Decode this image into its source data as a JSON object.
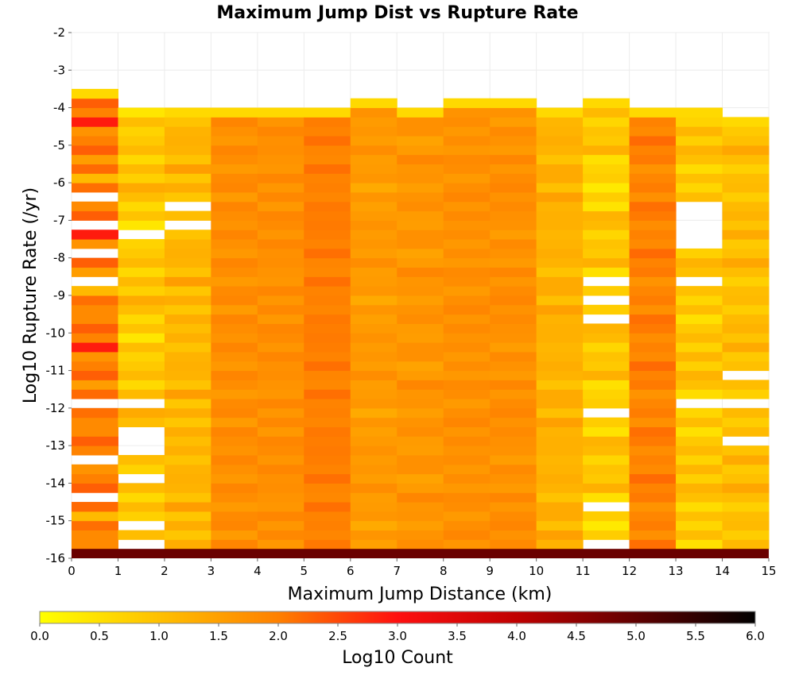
{
  "chart_data": {
    "type": "heatmap",
    "title": "Maximum Jump Dist vs Rupture Rate",
    "xlabel": "Maximum Jump Distance (km)",
    "ylabel": "Log10 Rupture Rate (/yr)",
    "xlim": [
      0,
      15
    ],
    "ylim": [
      -16,
      -2
    ],
    "x_ticks": [
      "0",
      "1",
      "2",
      "3",
      "4",
      "5",
      "6",
      "7",
      "8",
      "9",
      "10",
      "11",
      "12",
      "13",
      "14",
      "15"
    ],
    "y_ticks": [
      "-2",
      "-3",
      "-4",
      "-5",
      "-6",
      "-7",
      "-8",
      "-9",
      "-10",
      "-11",
      "-12",
      "-13",
      "-14",
      "-15",
      "-16"
    ],
    "bin_y0": -16,
    "bin_dy": 0.25,
    "grid": true,
    "colorbar": {
      "label": "Log10 Count",
      "range": [
        0,
        6
      ],
      "ticks": [
        "0.0",
        "0.5",
        "1.0",
        "1.5",
        "2.0",
        "2.5",
        "3.0",
        "3.5",
        "4.0",
        "4.5",
        "5.0",
        "5.5",
        "6.0"
      ],
      "stops": [
        {
          "v": 0.0,
          "c": "#ffff00"
        },
        {
          "v": 1.0,
          "c": "#ffc000"
        },
        {
          "v": 2.0,
          "c": "#ff8000"
        },
        {
          "v": 3.0,
          "c": "#ff1010"
        },
        {
          "v": 4.0,
          "c": "#c00000"
        },
        {
          "v": 5.0,
          "c": "#600000"
        },
        {
          "v": 6.0,
          "c": "#000000"
        }
      ]
    },
    "columns": [
      {
        "x": [
          0,
          1
        ],
        "top": -3.5,
        "base": 2.3,
        "holes": [
          -6.5,
          -7.25,
          -8.0,
          -8.75,
          -12.0,
          -13.5,
          -14.5
        ],
        "pattern": [
          0.0,
          -0.6,
          -0.3,
          0.2,
          -0.8,
          0.1,
          -0.5,
          0.3,
          -0.2,
          -0.7,
          0.4,
          -0.4
        ]
      },
      {
        "x": [
          1,
          2
        ],
        "top": -4.0,
        "base": 0.9,
        "holes": [
          -7.5,
          -12.0,
          -12.75,
          -13.0,
          -13.25,
          -14.0,
          -15.25,
          -15.75
        ],
        "pattern": [
          0.2,
          -0.3,
          0.0,
          0.3,
          -0.2,
          0.1,
          -0.4,
          0.2,
          0.0,
          -0.1,
          0.3,
          -0.3
        ]
      },
      {
        "x": [
          2,
          3
        ],
        "top": -4.0,
        "base": 1.0,
        "holes": [
          -6.75,
          -7.25
        ],
        "pattern": [
          0.1,
          0.3,
          -0.1,
          0.2,
          0.0,
          0.4,
          -0.2,
          0.1,
          0.3,
          0.0,
          -0.1,
          0.2
        ]
      },
      {
        "x": [
          3,
          4
        ],
        "top": -4.0,
        "base": 1.7,
        "holes": [],
        "pattern": [
          0.0,
          0.15,
          -0.1,
          0.2,
          0.05,
          -0.05,
          0.1,
          0.2,
          -0.1,
          0.0,
          0.15,
          0.05
        ]
      },
      {
        "x": [
          4,
          5
        ],
        "top": -4.0,
        "base": 1.7,
        "holes": [],
        "pattern": [
          0.1,
          -0.1,
          0.15,
          0.0,
          0.2,
          -0.05,
          0.05,
          0.1,
          0.0,
          0.15,
          -0.1,
          0.05
        ]
      },
      {
        "x": [
          5,
          6
        ],
        "top": -4.0,
        "base": 1.85,
        "holes": [],
        "pattern": [
          0.05,
          0.2,
          0.0,
          0.15,
          0.1,
          0.25,
          -0.05,
          0.1,
          0.2,
          0.0,
          0.1,
          0.15
        ]
      },
      {
        "x": [
          6,
          7
        ],
        "top": -3.75,
        "base": 1.5,
        "holes": [],
        "pattern": [
          0.1,
          0.0,
          0.2,
          -0.1,
          0.15,
          0.05,
          0.0,
          0.2,
          -0.05,
          0.1,
          0.0,
          0.15
        ]
      },
      {
        "x": [
          7,
          8
        ],
        "top": -4.0,
        "base": 1.55,
        "holes": [],
        "pattern": [
          0.0,
          0.2,
          0.1,
          -0.1,
          0.15,
          0.0,
          0.25,
          0.05,
          -0.05,
          0.1,
          0.2,
          0.0
        ]
      },
      {
        "x": [
          8,
          9
        ],
        "top": -3.75,
        "base": 1.65,
        "holes": [],
        "pattern": [
          0.1,
          0.0,
          0.2,
          0.05,
          -0.1,
          0.15,
          0.1,
          0.0,
          0.2,
          -0.05,
          0.1,
          0.05
        ]
      },
      {
        "x": [
          9,
          10
        ],
        "top": -3.75,
        "base": 1.65,
        "holes": [],
        "pattern": [
          0.0,
          0.15,
          0.05,
          0.2,
          0.1,
          -0.05,
          0.15,
          0.0,
          0.1,
          0.2,
          -0.1,
          0.05
        ]
      },
      {
        "x": [
          10,
          11
        ],
        "top": -4.0,
        "base": 1.1,
        "holes": [],
        "pattern": [
          0.2,
          0.0,
          0.3,
          -0.1,
          0.1,
          0.2,
          -0.2,
          0.0,
          0.3,
          0.1,
          -0.1,
          0.2
        ]
      },
      {
        "x": [
          11,
          12
        ],
        "top": -3.75,
        "base": 0.8,
        "holes": [
          -8.75,
          -9.25,
          -9.75,
          -12.25,
          -14.75,
          -15.75
        ],
        "pattern": [
          0.3,
          -0.2,
          0.1,
          -0.4,
          0.2,
          0.0,
          -0.3,
          0.3,
          -0.1,
          0.1,
          -0.2,
          0.2
        ]
      },
      {
        "x": [
          12,
          13
        ],
        "top": -4.0,
        "base": 1.75,
        "holes": [],
        "pattern": [
          0.2,
          0.4,
          0.0,
          0.3,
          0.1,
          -0.1,
          0.2,
          0.0,
          0.3,
          -0.05,
          0.15,
          0.1
        ]
      },
      {
        "x": [
          13,
          14
        ],
        "top": -4.0,
        "base": 0.9,
        "holes": [
          -6.75,
          -7.0,
          -7.25,
          -7.5,
          -7.75,
          -8.75,
          -12.0
        ],
        "pattern": [
          0.1,
          -0.3,
          0.2,
          -0.1,
          0.3,
          -0.4,
          0.0,
          0.2,
          -0.2,
          0.1,
          -0.3,
          0.2
        ]
      },
      {
        "x": [
          14,
          15
        ],
        "top": -4.25,
        "base": 1.0,
        "holes": [
          -11.25,
          -12.0,
          -13.0
        ],
        "pattern": [
          0.3,
          0.1,
          -0.2,
          0.2,
          0.0,
          -0.3,
          0.1,
          0.3,
          -0.1,
          0.0,
          0.2,
          -0.2
        ]
      }
    ],
    "bottom_row": {
      "y": [
        -16,
        -15.75
      ],
      "value": 4.9
    }
  }
}
